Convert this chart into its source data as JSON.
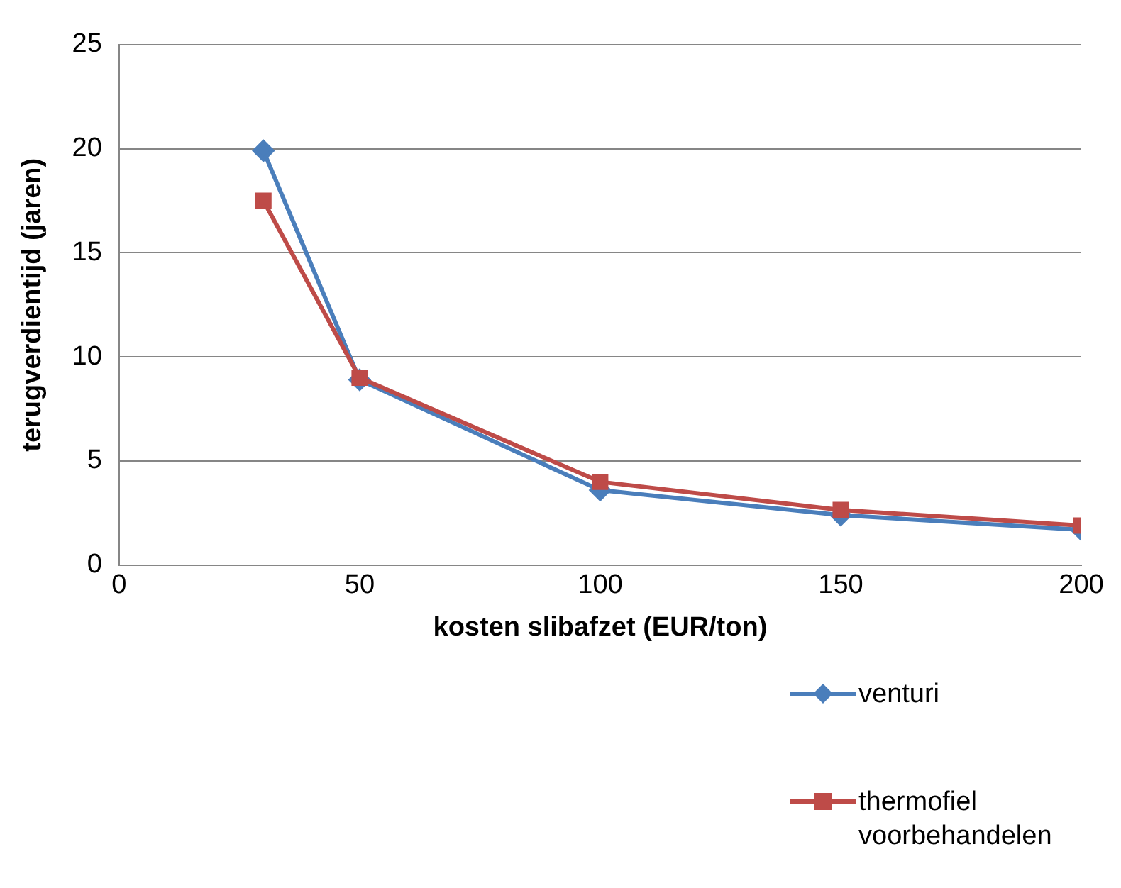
{
  "chart_data": {
    "type": "line",
    "xlabel": "kosten slibafzet (EUR/ton)",
    "ylabel": "terugverdientijd (jaren)",
    "x": [
      30,
      50,
      100,
      150,
      200
    ],
    "series": [
      {
        "name": "venturi",
        "color": "#4a7ebb",
        "values": [
          19.9,
          8.9,
          3.6,
          2.4,
          1.7
        ],
        "marker": "diamond"
      },
      {
        "name": "thermofiel voorbehandelen",
        "color": "#be4b48",
        "values": [
          17.5,
          9.0,
          4.0,
          2.65,
          1.9
        ],
        "marker": "square"
      }
    ],
    "xlim": [
      0,
      200
    ],
    "xticks": [
      0,
      50,
      100,
      150,
      200
    ],
    "ylim": [
      0,
      25
    ],
    "yticks": [
      0,
      5,
      10,
      15,
      20,
      25
    ],
    "grid": "y",
    "legend": "bottom right"
  }
}
